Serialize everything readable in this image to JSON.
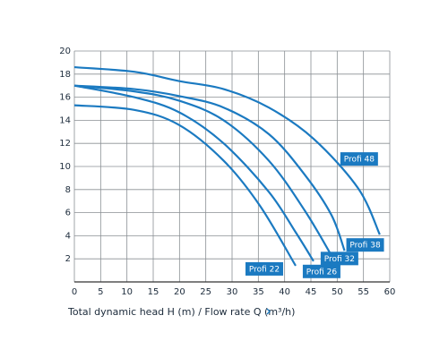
{
  "chart_data": {
    "type": "line",
    "x_label": "Total dynamic head H (m) / Flow rate Q (m³/h)",
    "xlim": [
      0,
      60
    ],
    "ylim": [
      0,
      20
    ],
    "xticks": [
      0,
      5,
      10,
      15,
      20,
      25,
      30,
      35,
      40,
      45,
      50,
      55,
      60
    ],
    "yticks": [
      2,
      4,
      6,
      8,
      10,
      12,
      14,
      16,
      18,
      20
    ],
    "grid": true,
    "series": [
      {
        "name": "Profi 22",
        "color": "#1b7ac1",
        "x": [
          0,
          11.4,
          19.9,
          28.4,
          35.3,
          42.1
        ],
        "values": [
          15.3,
          14.9,
          13.6,
          10.5,
          6.6,
          1.4
        ]
      },
      {
        "name": "Profi 26",
        "color": "#1b7ac1",
        "x": [
          0,
          11.4,
          19.9,
          28.4,
          37,
          42.1,
          45.5
        ],
        "values": [
          17,
          16.0,
          14.7,
          12.0,
          7.8,
          4.3,
          1.8
        ]
      },
      {
        "name": "Profi 32",
        "color": "#1b7ac1",
        "x": [
          0,
          11.4,
          19.9,
          28.4,
          37,
          43.8,
          48.9
        ],
        "values": [
          17,
          16.5,
          15.7,
          14.0,
          10.5,
          6.2,
          2.3
        ]
      },
      {
        "name": "Profi 38",
        "color": "#1b7ac1",
        "x": [
          0,
          11.4,
          19.9,
          28.4,
          37,
          43.8,
          48.9,
          51.4
        ],
        "values": [
          17,
          16.7,
          16.1,
          15.1,
          12.8,
          9.3,
          5.8,
          2.7
        ]
      },
      {
        "name": "Profi 48",
        "color": "#1b7ac1",
        "x": [
          0,
          11.4,
          19.9,
          28.4,
          37,
          45.5,
          54,
          58.1
        ],
        "values": [
          18.6,
          18.2,
          17.4,
          16.7,
          15.1,
          12.4,
          8.1,
          4.1
        ]
      }
    ]
  }
}
